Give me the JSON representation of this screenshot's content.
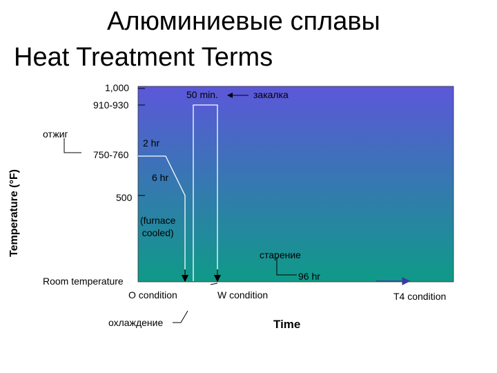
{
  "title_ru": "Алюминиевые сплавы",
  "title_en": "Heat Treatment Terms",
  "y_axis_label": "Temperature (°F)",
  "x_axis_label": "Time",
  "temperature_labels": {
    "t1000": "1,000",
    "t910": "910-930",
    "t750": "750-760",
    "t500": "500",
    "room": "Room temperature"
  },
  "annotations": {
    "annealing": "отжиг",
    "quench_time": "50 min.",
    "quenching": "закалка",
    "hold_2hr": "2 hr",
    "hold_6hr": "6 hr",
    "furnace_cooled": "(furnace\ncooled)",
    "aging": "старение",
    "aging_time": "96 hr",
    "cooling": "охлаждение"
  },
  "conditions": {
    "o": "O condition",
    "w": "W condition",
    "t4": "T4 condition"
  },
  "colors": {
    "gradient_top": "#5c57d9",
    "gradient_bottom": "#0f9a88",
    "line": "#ffffff",
    "axis": "#000000",
    "arrow": "#3a3aa0"
  }
}
